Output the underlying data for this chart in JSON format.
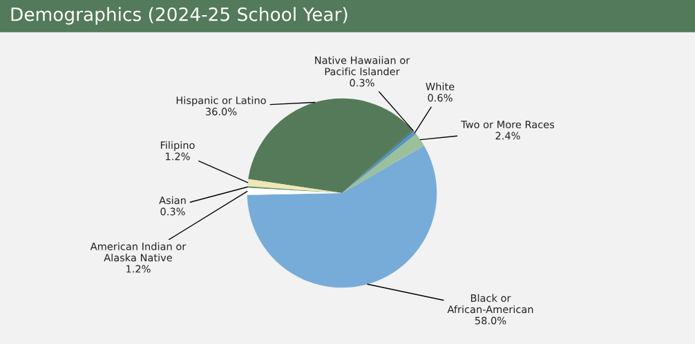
{
  "chart_data": {
    "type": "pie",
    "title": "Demographics (2024-25 School Year)",
    "categories": [
      "Black or\nAfrican-American",
      "Two or More Races",
      "White",
      "Native Hawaiian or\nPacific Islander",
      "Hispanic or Latino",
      "Filipino",
      "Asian",
      "American Indian or\nAlaska Native"
    ],
    "values": [
      58.0,
      2.4,
      0.6,
      0.3,
      36.0,
      1.2,
      0.3,
      1.2
    ],
    "value_labels": [
      "58.0%",
      "2.4%",
      "0.6%",
      "0.3%",
      "36.0%",
      "1.2%",
      "0.3%",
      "1.2%"
    ],
    "colors": [
      "#78acd8",
      "#9cc09c",
      "#5a94c0",
      "#3e7a80",
      "#557a5a",
      "#f0e8b4",
      "#6e9a78",
      "#ffffff"
    ]
  }
}
